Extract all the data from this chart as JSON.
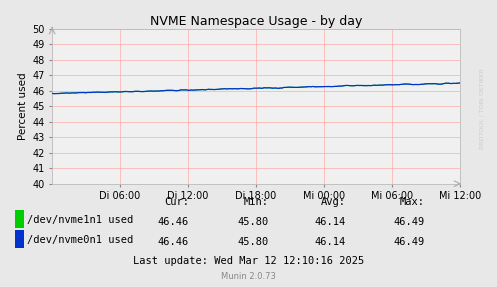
{
  "title": "NVME Namespace Usage - by day",
  "ylabel": "Percent used",
  "ylim": [
    40,
    50
  ],
  "yticks": [
    40,
    41,
    42,
    43,
    44,
    45,
    46,
    47,
    48,
    49,
    50
  ],
  "xtick_positions": [
    6,
    12,
    18,
    24,
    30,
    36
  ],
  "xtick_labels": [
    "Di 06:00",
    "Di 12:00",
    "Di 18:00",
    "Mi 00:00",
    "Mi 06:00",
    "Mi 12:00"
  ],
  "xlim": [
    0,
    36
  ],
  "bg_color": "#e8e8e8",
  "plot_bg_color": "#f0f0f0",
  "grid_color": "#ffaaaa",
  "line1_color": "#00cc00",
  "line2_color": "#0033cc",
  "line1_label": "/dev/nvme1n1 used",
  "line2_label": "/dev/nvme0n1 used",
  "cur1": 46.46,
  "min1": 45.8,
  "avg1": 46.14,
  "max1": 46.49,
  "cur2": 46.46,
  "min2": 45.8,
  "avg2": 46.14,
  "max2": 46.49,
  "footer": "Last update: Wed Mar 12 12:10:16 2025",
  "munin_version": "Munin 2.0.73",
  "watermark": "RRDTOOL / TOBI OETIKER",
  "title_fontsize": 9,
  "axis_fontsize": 7,
  "legend_fontsize": 7.5
}
